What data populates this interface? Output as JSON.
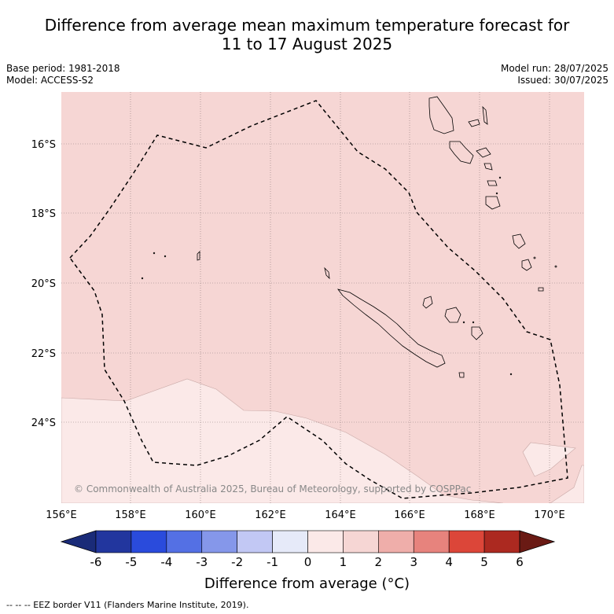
{
  "title_line1": "Difference from average mean maximum temperature forecast for",
  "title_line2": "11 to 17 August 2025",
  "base_period": "Base period: 1981-2018",
  "model": "Model: ACCESS-S2",
  "model_run": "Model run: 28/07/2025",
  "issued": "Issued: 30/07/2025",
  "copyright": "© Commonwealth of Australia 2025, Bureau of Meteorology, supported by COSPPac",
  "lat_labels": [
    "16°S",
    "18°S",
    "20°S",
    "22°S",
    "24°S"
  ],
  "lon_labels": [
    "156°E",
    "158°E",
    "160°E",
    "162°E",
    "164°E",
    "166°E",
    "168°E",
    "170°E"
  ],
  "colorbar": {
    "ticks": [
      "-6",
      "-5",
      "-4",
      "-3",
      "-2",
      "-1",
      "0",
      "1",
      "2",
      "3",
      "4",
      "5",
      "6"
    ],
    "colors": [
      "#22369e",
      "#2a4bdc",
      "#5470e4",
      "#8597ea",
      "#c2c8f4",
      "#e6eaf9",
      "#fbe9e8",
      "#f6d6d4",
      "#efaeaa",
      "#e7837d",
      "#dc4639",
      "#ac2920"
    ],
    "under_color": "#1a2b78",
    "over_color": "#6a1a14",
    "label": "Difference from average (°C)"
  },
  "map": {
    "zone_1_2_color": "#f6d6d4",
    "zone_0_1_color": "#fbe9e8"
  },
  "footnote": "--  --  -- EEZ border V11 (Flanders Marine Institute, 2019)."
}
